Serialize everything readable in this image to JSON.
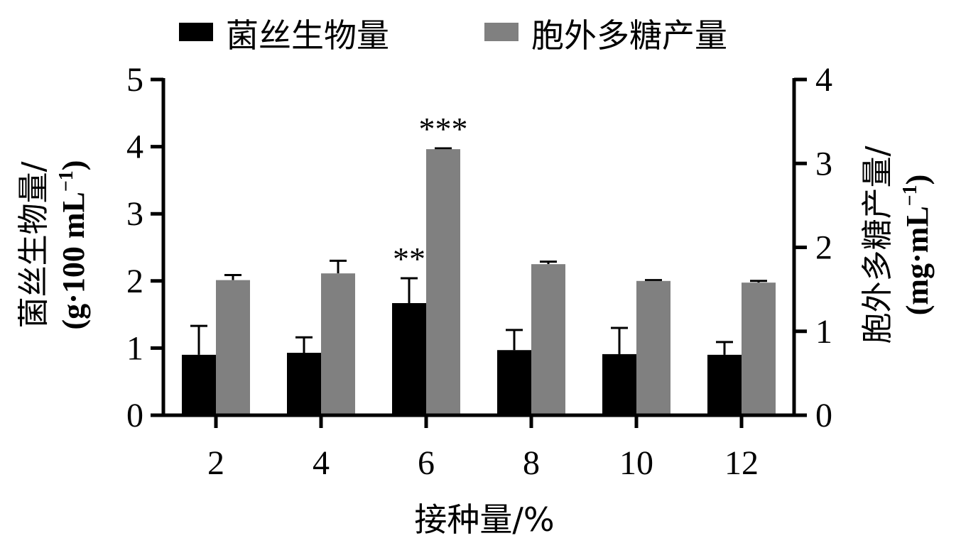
{
  "chart_data": {
    "type": "bar",
    "categories": [
      "2",
      "4",
      "6",
      "8",
      "10",
      "12"
    ],
    "series": [
      {
        "name": "菌丝生物量",
        "axis": "left",
        "color": "#000000",
        "values": [
          0.9,
          0.93,
          1.67,
          0.97,
          0.91,
          0.9
        ],
        "errors": [
          0.43,
          0.23,
          0.37,
          0.3,
          0.39,
          0.19
        ],
        "significance": [
          "",
          "",
          "**",
          "",
          "",
          ""
        ]
      },
      {
        "name": "胞外多糖产量",
        "axis": "right",
        "color": "#808080",
        "values": [
          1.61,
          1.69,
          3.17,
          1.8,
          1.6,
          1.58
        ],
        "errors": [
          0.06,
          0.15,
          0.01,
          0.03,
          0.01,
          0.02
        ],
        "significance": [
          "",
          "",
          "***",
          "",
          "",
          ""
        ]
      }
    ],
    "xlabel": "接种量/%",
    "ylabel_left": [
      "菌丝生物量/",
      "(g·100 mL",
      "−1",
      ")"
    ],
    "ylabel_right": [
      "胞外多糖产量/",
      "(mg·mL",
      "−1",
      ")"
    ],
    "ylim_left": [
      0,
      5
    ],
    "yticks_left": [
      "0",
      "1",
      "2",
      "3",
      "4",
      "5"
    ],
    "ylim_right": [
      0,
      4
    ],
    "yticks_right": [
      "0",
      "1",
      "2",
      "3",
      "4"
    ],
    "grid": false,
    "legend_position": "top"
  }
}
